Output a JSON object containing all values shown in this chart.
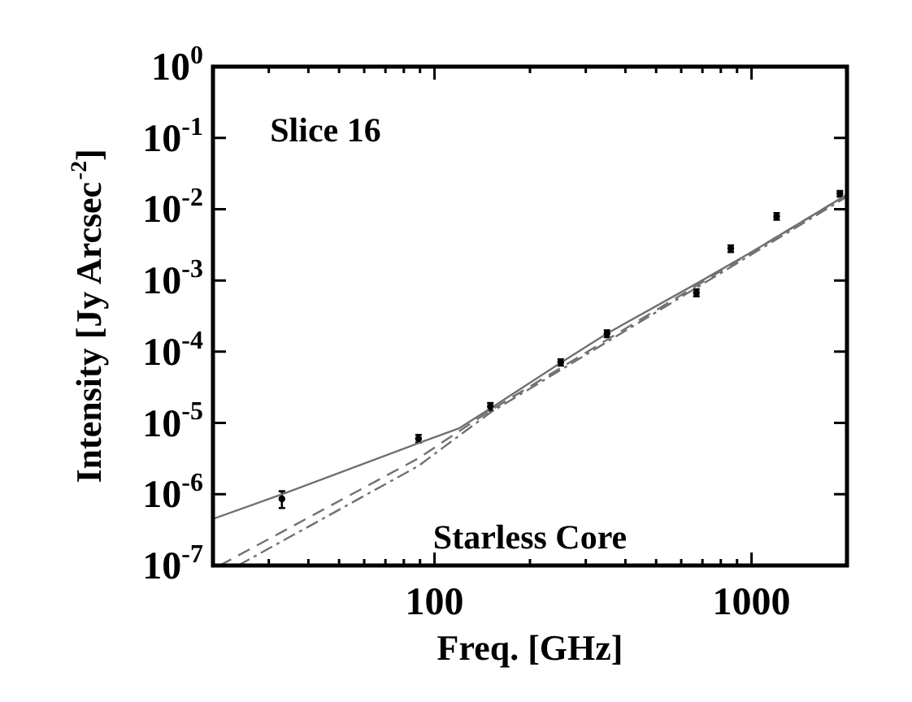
{
  "chart_data": {
    "type": "scatter",
    "xlabel": "Freq. [GHz]",
    "ylabel": "Intensity [Jy Arcsec$^{-2}$]",
    "annotations": [
      "Slice 16",
      "Starless Core"
    ],
    "log": "xy",
    "legend": false,
    "xlim": [
      20,
      2000
    ],
    "ylim": [
      1e-07,
      1
    ],
    "xticks": [
      {
        "value": 20,
        "label": null
      },
      {
        "value": 30,
        "label": null
      },
      {
        "value": 40,
        "label": null
      },
      {
        "value": 50,
        "label": null
      },
      {
        "value": 60,
        "label": null
      },
      {
        "value": 70,
        "label": null
      },
      {
        "value": 80,
        "label": null
      },
      {
        "value": 90,
        "label": null
      },
      100,
      {
        "value": 200,
        "label": null
      },
      {
        "value": 300,
        "label": null
      },
      {
        "value": 400,
        "label": null
      },
      {
        "value": 500,
        "label": null
      },
      {
        "value": 600,
        "label": null
      },
      {
        "value": 700,
        "label": null
      },
      {
        "value": 800,
        "label": null
      },
      {
        "value": 900,
        "label": null
      },
      1000,
      {
        "value": 2000,
        "label": null
      }
    ],
    "yticks": [
      {
        "value": 1e-07,
        "label": "10$^{-7}$"
      },
      {
        "value": 1e-06,
        "label": "10$^{-6}$"
      },
      {
        "value": 1e-05,
        "label": "10$^{-5}$"
      },
      {
        "value": 0.0001,
        "label": "10$^{-4}$"
      },
      {
        "value": 0.001,
        "label": "10$^{-3}$"
      },
      {
        "value": 0.01,
        "label": "10$^{-2}$"
      },
      {
        "value": 0.1,
        "label": "10$^{-1}$"
      },
      {
        "value": 1,
        "label": "10$^{0}$"
      }
    ],
    "series": [
      {
        "color": "#000000",
        "marker": "circle",
        "x": [
          33,
          89,
          150,
          250,
          350,
          670,
          860,
          1200,
          1900
        ],
        "values": [
          8.6e-07,
          6e-06,
          1.7e-05,
          7.1e-05,
          0.00018,
          0.00067,
          0.0028,
          0.0079,
          0.0165
        ],
        "errors": [
          [
            6.4e-07,
            1.1e-06
          ],
          [
            5.3e-06,
            6.8e-06
          ],
          [
            1.5e-05,
            1.9e-05
          ],
          [
            6.4e-05,
            7.8e-05
          ],
          [
            0.00016,
            0.0002
          ],
          [
            0.0006,
            0.00075
          ],
          [
            0.0025,
            0.0031
          ],
          [
            0.0071,
            0.0088
          ],
          [
            0.015,
            0.018
          ]
        ]
      },
      {
        "type": "line",
        "color": "#707070",
        "line_style": "solid",
        "marker": "none",
        "x": [
          20,
          33,
          89,
          120,
          150,
          250,
          350,
          670,
          1000,
          2000
        ],
        "values": [
          4.5e-07,
          1e-06,
          5.2e-06,
          8.5e-06,
          1.6e-05,
          7e-05,
          0.00018,
          0.0009,
          0.0025,
          0.016
        ]
      },
      {
        "type": "line",
        "color": "#707070",
        "line_style": "dashed",
        "marker": "none",
        "x": [
          21,
          89,
          150,
          2000
        ],
        "values": [
          1e-07,
          3.2e-06,
          1.5e-05,
          0.016
        ]
      },
      {
        "type": "line",
        "color": "#707070",
        "line_style": "dashdot",
        "marker": "none",
        "x": [
          24,
          89,
          150,
          2000
        ],
        "values": [
          1e-07,
          2.5e-06,
          1.4e-05,
          0.015
        ]
      }
    ]
  }
}
